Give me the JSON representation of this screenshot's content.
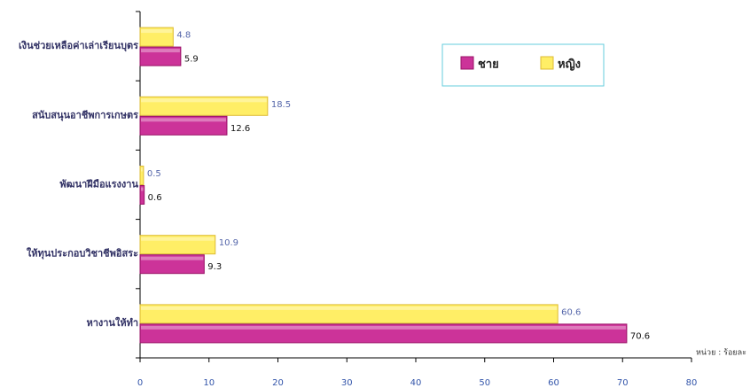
{
  "chart_data": {
    "type": "bar",
    "orientation": "horizontal",
    "categories": [
      "เงินช่วยเหลือค่าเล่าเรียนบุตร",
      "สนับสนุนอาชีพการเกษตร",
      "พัฒนาฝีมือแรงงาน",
      "ให้ทุนประกอบวิชาชีพอิสระ",
      "หางานให้ทำ"
    ],
    "series": [
      {
        "name": "ชาย",
        "color": "#cc3399",
        "values": [
          5.9,
          12.6,
          0.6,
          9.3,
          70.6
        ]
      },
      {
        "name": "หญิง",
        "color": "#ffee66",
        "values": [
          4.8,
          18.5,
          0.5,
          10.9,
          60.6
        ]
      }
    ],
    "xlim": [
      0,
      80
    ],
    "xticks": [
      0,
      10,
      20,
      30,
      40,
      50,
      60,
      70,
      80
    ],
    "unit_note": "หน่วย : ร้อยละ",
    "legend": "top-right",
    "grid": false
  }
}
